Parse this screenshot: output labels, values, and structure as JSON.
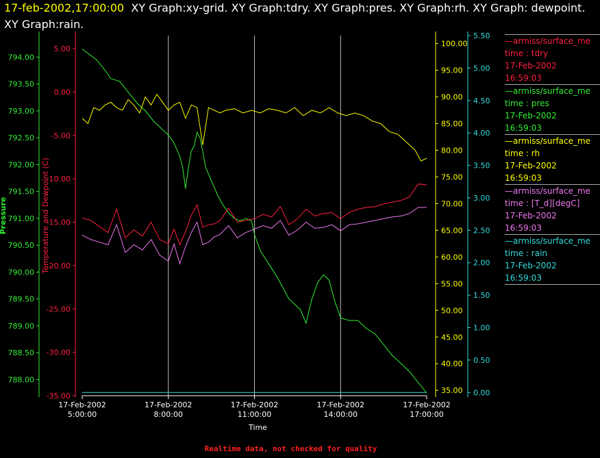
{
  "header": {
    "timestamp": "17-feb-2002,17:00:00",
    "graphs": "XY Graph:xy-grid.  XY Graph:tdry.  XY Graph:pres.  XY Graph:rh.  XY Graph: dewpoint.  XY Graph:rain."
  },
  "colors": {
    "pressure": "#33ee33",
    "temperature": "#ff2040",
    "dewpoint": "#ee77ee",
    "rh": "#ffff00",
    "rain": "#33dddd",
    "grid": "#c0c0c0",
    "text": "#ffffff",
    "quality": "#ff2020"
  },
  "legend": [
    {
      "source": "—armiss/surface_me",
      "label": "time : tdry",
      "date": "17-Feb-2002",
      "time": "16:59:03",
      "color": "#ff2040"
    },
    {
      "source": "—armiss/surface_me",
      "label": "time : pres",
      "date": "17-Feb-2002",
      "time": "16:59:03",
      "color": "#33ee33"
    },
    {
      "source": "—armiss/surface_me",
      "label": "time : rh",
      "date": "17-Feb-2002",
      "time": "16:59:03",
      "color": "#ffff00"
    },
    {
      "source": "—armiss/surface_me",
      "label": "time : [T_d][degC]",
      "date": "17-Feb-2002",
      "time": "16:59:03",
      "color": "#ee77ee"
    },
    {
      "source": "—armiss/surface_me",
      "label": "time : rain",
      "date": "17-Feb-2002",
      "time": "16:59:03",
      "color": "#33dddd"
    }
  ],
  "footer": {
    "quality": "Realtime data, not checked for quality"
  },
  "chart_data": {
    "type": "line",
    "xlabel": "Time",
    "x_ticks": [
      {
        "date": "17-Feb-2002",
        "time": "5:00:00"
      },
      {
        "date": "17-Feb-2002",
        "time": "8:00:00"
      },
      {
        "date": "17-Feb-2002",
        "time": "11:00:00"
      },
      {
        "date": "17-Feb-2002",
        "time": "14:00:00"
      },
      {
        "date": "17-Feb-2002",
        "time": "17:00:00"
      }
    ],
    "xlim_hours": [
      5,
      17
    ],
    "grid": "vertical lines at x ticks",
    "axes": {
      "pressure": {
        "label": "Pressure",
        "ylim": [
          787.7,
          794.4
        ],
        "ticks": [
          "794.00",
          "793.50",
          "793.00",
          "792.50",
          "792.00",
          "791.50",
          "791.00",
          "790.50",
          "790.00",
          "789.50",
          "789.00",
          "788.50",
          "788.00"
        ]
      },
      "temperature": {
        "label": "Temperature and Dewpoint (C)",
        "ylim": [
          -35,
          6.5
        ],
        "ticks": [
          "5.00",
          "0.00",
          "-5.00",
          "-10.00",
          "-15.00",
          "-20.00",
          "-25.00",
          "-30.00",
          "-35.00"
        ]
      },
      "rh": {
        "ylim": [
          34,
          101.5
        ],
        "ticks": [
          "100.00",
          "95.00",
          "90.00",
          "85.00",
          "80.00",
          "75.00",
          "70.00",
          "65.00",
          "60.00",
          "55.00",
          "50.00",
          "45.00",
          "40.00",
          "35.00"
        ]
      },
      "rain": {
        "ylim": [
          -0.05,
          5.5
        ],
        "ticks": [
          "5.50",
          "5.00",
          "4.50",
          "4.00",
          "3.50",
          "3.00",
          "2.50",
          "2.00",
          "1.50",
          "1.00",
          "0.50",
          "0.00"
        ]
      }
    },
    "series": [
      {
        "key": "pressure",
        "axis": "pressure",
        "x": [
          5.0,
          5.5,
          5.8,
          6.0,
          6.3,
          6.6,
          6.9,
          7.2,
          7.5,
          7.8,
          8.0,
          8.2,
          8.4,
          8.5,
          8.6,
          8.7,
          8.8,
          8.9,
          9.0,
          9.1,
          9.2,
          9.3,
          9.5,
          9.7,
          9.9,
          10.1,
          10.3,
          10.5,
          10.7,
          10.9,
          11.0,
          11.2,
          11.5,
          11.8,
          12.0,
          12.2,
          12.4,
          12.6,
          12.8,
          13.0,
          13.2,
          13.4,
          13.6,
          13.8,
          14.0,
          14.3,
          14.6,
          14.9,
          15.2,
          15.5,
          15.8,
          16.1,
          16.4,
          16.7,
          17.0
        ],
        "y": [
          794.15,
          793.95,
          793.75,
          793.6,
          793.55,
          793.35,
          793.15,
          793.0,
          792.8,
          792.65,
          792.55,
          792.4,
          792.15,
          791.95,
          791.55,
          791.95,
          792.25,
          792.35,
          792.6,
          792.5,
          792.25,
          791.95,
          791.7,
          791.45,
          791.25,
          791.1,
          791.0,
          790.95,
          791.0,
          790.95,
          790.7,
          790.4,
          790.15,
          789.9,
          789.7,
          789.5,
          789.4,
          789.3,
          789.05,
          789.5,
          789.8,
          789.95,
          789.85,
          789.45,
          789.15,
          789.1,
          789.1,
          788.95,
          788.85,
          788.65,
          788.45,
          788.3,
          788.15,
          787.95,
          787.75
        ]
      },
      {
        "key": "temperature",
        "axis": "temperature",
        "x": [
          5.0,
          5.3,
          5.6,
          5.9,
          6.2,
          6.5,
          6.8,
          7.1,
          7.4,
          7.7,
          8.0,
          8.2,
          8.4,
          8.6,
          8.8,
          9.0,
          9.2,
          9.4,
          9.6,
          9.8,
          10.1,
          10.4,
          10.7,
          11.0,
          11.3,
          11.6,
          11.9,
          12.2,
          12.5,
          12.8,
          13.1,
          13.4,
          13.7,
          14.0,
          14.3,
          14.6,
          14.9,
          15.2,
          15.5,
          15.8,
          16.1,
          16.4,
          16.7,
          17.0
        ],
        "y": [
          -14.5,
          -14.8,
          -15.5,
          -16.2,
          -13.5,
          -16.8,
          -15.9,
          -16.6,
          -15.0,
          -17.0,
          -17.5,
          -15.8,
          -17.6,
          -16.1,
          -14.2,
          -13.0,
          -15.6,
          -15.3,
          -15.2,
          -14.8,
          -13.4,
          -15.0,
          -14.8,
          -14.6,
          -14.1,
          -14.4,
          -13.2,
          -15.3,
          -14.6,
          -13.5,
          -14.3,
          -14.0,
          -13.9,
          -14.6,
          -13.9,
          -13.5,
          -13.3,
          -13.2,
          -12.9,
          -12.7,
          -12.5,
          -12.1,
          -10.6,
          -10.7
        ]
      },
      {
        "key": "dewpoint",
        "axis": "temperature",
        "x": [
          5.0,
          5.3,
          5.6,
          5.9,
          6.2,
          6.5,
          6.8,
          7.1,
          7.4,
          7.7,
          8.0,
          8.2,
          8.4,
          8.6,
          8.8,
          9.0,
          9.2,
          9.4,
          9.6,
          9.8,
          10.1,
          10.4,
          10.7,
          11.0,
          11.3,
          11.6,
          11.9,
          12.2,
          12.5,
          12.8,
          13.1,
          13.4,
          13.7,
          14.0,
          14.3,
          14.6,
          14.9,
          15.2,
          15.5,
          15.8,
          16.1,
          16.4,
          16.7,
          17.0
        ],
        "y": [
          -16.5,
          -17.0,
          -17.3,
          -17.6,
          -15.3,
          -18.5,
          -17.6,
          -18.2,
          -17.0,
          -18.8,
          -19.5,
          -17.5,
          -19.8,
          -17.8,
          -16.2,
          -15.0,
          -17.6,
          -17.3,
          -16.7,
          -16.4,
          -15.4,
          -16.8,
          -16.2,
          -15.8,
          -15.4,
          -15.7,
          -14.8,
          -16.5,
          -15.9,
          -15.0,
          -15.7,
          -15.6,
          -15.3,
          -16.0,
          -15.3,
          -15.2,
          -15.0,
          -14.8,
          -14.6,
          -14.4,
          -14.3,
          -14.0,
          -13.3,
          -13.3
        ]
      },
      {
        "key": "rh",
        "axis": "rh",
        "x": [
          5.0,
          5.2,
          5.4,
          5.6,
          5.8,
          6.0,
          6.2,
          6.4,
          6.6,
          6.8,
          7.0,
          7.2,
          7.4,
          7.6,
          7.8,
          8.0,
          8.2,
          8.4,
          8.6,
          8.8,
          9.0,
          9.2,
          9.4,
          9.6,
          9.8,
          10.0,
          10.3,
          10.6,
          10.9,
          11.2,
          11.5,
          11.8,
          12.1,
          12.4,
          12.7,
          13.0,
          13.3,
          13.6,
          13.9,
          14.2,
          14.5,
          14.8,
          15.1,
          15.4,
          15.7,
          16.0,
          16.3,
          16.6,
          16.8,
          17.0
        ],
        "y": [
          86.0,
          85.0,
          88.0,
          87.5,
          88.5,
          89.0,
          88.0,
          87.5,
          89.5,
          88.5,
          87.0,
          90.0,
          88.5,
          90.5,
          89.0,
          87.5,
          88.5,
          89.0,
          86.0,
          88.5,
          88.0,
          81.0,
          88.0,
          87.5,
          87.0,
          87.5,
          87.8,
          87.0,
          87.5,
          87.0,
          87.8,
          87.5,
          87.0,
          88.0,
          86.5,
          87.5,
          87.0,
          88.0,
          87.0,
          86.5,
          87.0,
          86.5,
          85.5,
          85.0,
          83.5,
          83.0,
          81.5,
          80.0,
          78.0,
          78.5
        ]
      },
      {
        "key": "rain",
        "axis": "rain",
        "x": [
          5.0,
          17.0
        ],
        "y": [
          0.0,
          0.0
        ]
      }
    ]
  }
}
